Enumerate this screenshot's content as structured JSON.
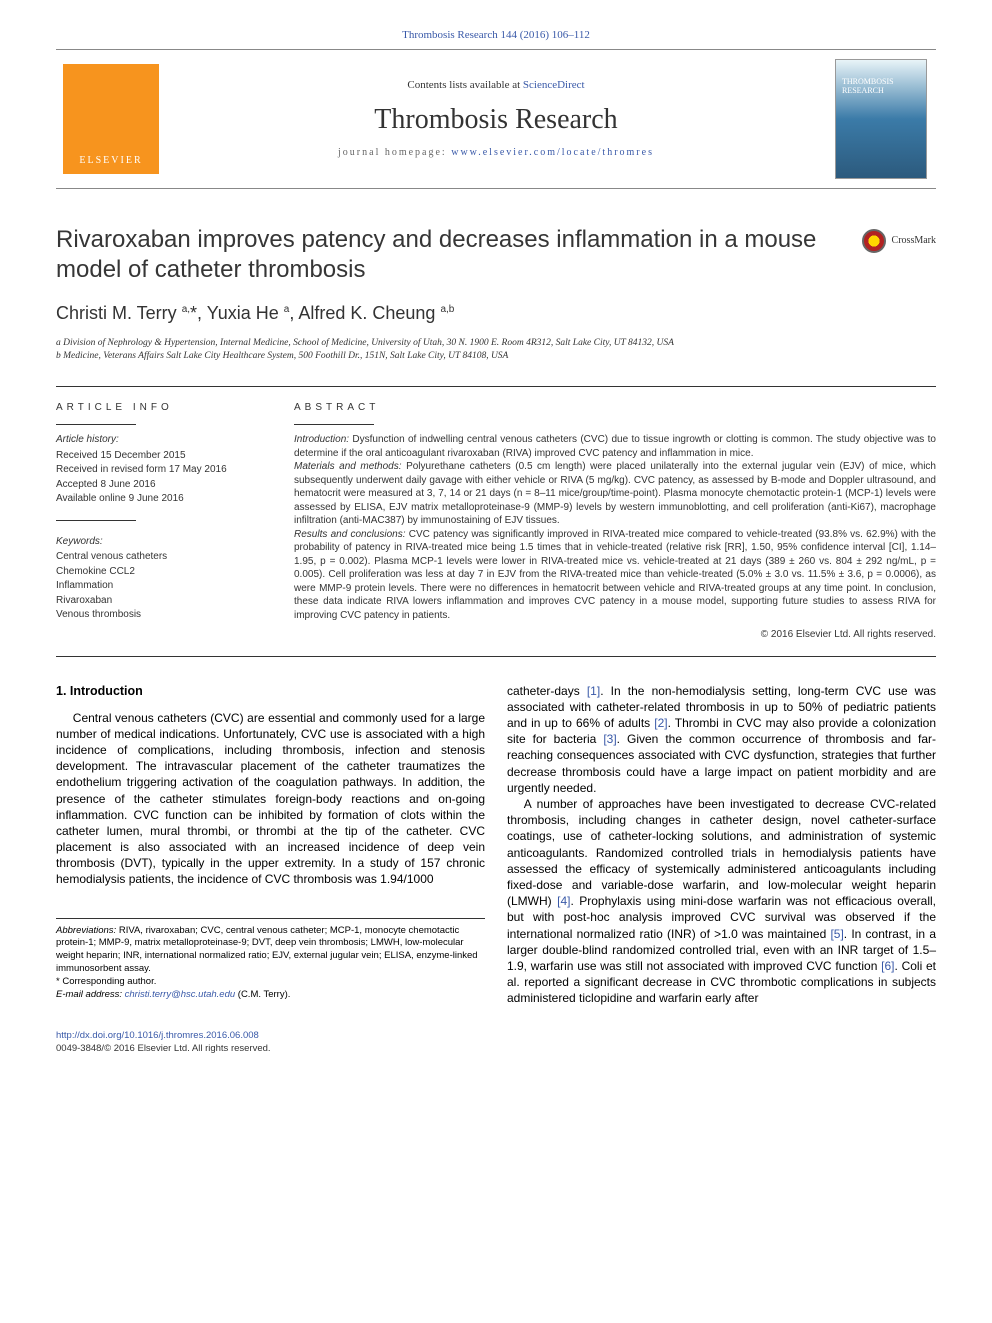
{
  "links": {
    "citation": "Thrombosis Research 144 (2016) 106–112",
    "sciencedirect_prefix": "Contents lists available at ",
    "sciencedirect_label": "ScienceDirect",
    "homepage_prefix": "journal homepage: ",
    "homepage_url": "www.elsevier.com/locate/thromres"
  },
  "masthead": {
    "publisher_logo_text": "ELSEVIER",
    "journal_name": "Thrombosis Research",
    "cover_label_line1": "THROMBOSIS",
    "cover_label_line2": "RESEARCH"
  },
  "crossmark_label": "CrossMark",
  "article": {
    "title": "Rivaroxaban improves patency and decreases inflammation in a mouse model of catheter thrombosis",
    "authors_html": "Christi M. Terry <sup>a,</sup><span class='star'>*</span>, Yuxia He <sup>a</sup>, Alfred K. Cheung <sup>a,b</sup>",
    "affiliations": [
      "a  Division of Nephrology & Hypertension, Internal Medicine, School of Medicine, University of Utah, 30 N. 1900 E. Room 4R312, Salt Lake City, UT 84132, USA",
      "b  Medicine, Veterans Affairs Salt Lake City Healthcare System, 500 Foothill Dr., 151N, Salt Lake City, UT 84108, USA"
    ]
  },
  "article_info": {
    "label": "ARTICLE INFO",
    "history_label": "Article history:",
    "history": [
      "Received 15 December 2015",
      "Received in revised form 17 May 2016",
      "Accepted 8 June 2016",
      "Available online 9 June 2016"
    ],
    "keywords_label": "Keywords:",
    "keywords": [
      "Central venous catheters",
      "Chemokine CCL2",
      "Inflammation",
      "Rivaroxaban",
      "Venous thrombosis"
    ]
  },
  "abstract": {
    "label": "ABSTRACT",
    "introduction_label": "Introduction:",
    "introduction": " Dysfunction of indwelling central venous catheters (CVC) due to tissue ingrowth or clotting is common. The study objective was to determine if the oral anticoagulant rivaroxaban (RIVA) improved CVC patency and inflammation in mice.",
    "methods_label": "Materials and methods:",
    "methods": " Polyurethane catheters (0.5 cm length) were placed unilaterally into the external jugular vein (EJV) of mice, which subsequently underwent daily gavage with either vehicle or RIVA (5 mg/kg). CVC patency, as assessed by B-mode and Doppler ultrasound, and hematocrit were measured at 3, 7, 14 or 21 days (n = 8–11 mice/group/time-point). Plasma monocyte chemotactic protein-1 (MCP-1) levels were assessed by ELISA, EJV matrix metalloproteinase-9 (MMP-9) levels by western immunoblotting, and cell proliferation (anti-Ki67), macrophage infiltration (anti-MAC387) by immunostaining of EJV tissues.",
    "results_label": "Results and conclusions:",
    "results": " CVC patency was significantly improved in RIVA-treated mice compared to vehicle-treated (93.8% vs. 62.9%) with the probability of patency in RIVA-treated mice being 1.5 times that in vehicle-treated (relative risk [RR], 1.50, 95% confidence interval [CI], 1.14–1.95, p = 0.002). Plasma MCP-1 levels were lower in RIVA-treated mice vs. vehicle-treated at 21 days (389 ± 260 vs. 804 ± 292 ng/mL, p = 0.005). Cell proliferation was less at day 7 in EJV from the RIVA-treated mice than vehicle-treated (5.0% ± 3.0 vs. 11.5% ± 3.6, p = 0.0006), as were MMP-9 protein levels. There were no differences in hematocrit between vehicle and RIVA-treated groups at any time point. In conclusion, these data indicate RIVA lowers inflammation and improves CVC patency in a mouse model, supporting future studies to assess RIVA for improving CVC patency in patients.",
    "copyright": "© 2016 Elsevier Ltd. All rights reserved."
  },
  "body": {
    "heading": "1. Introduction",
    "para1": "Central venous catheters (CVC) are essential and commonly used for a large number of medical indications. Unfortunately, CVC use is associated with a high incidence of complications, including thrombosis, infection and stenosis development. The intravascular placement of the catheter traumatizes the endothelium triggering activation of the coagulation pathways. In addition, the presence of the catheter stimulates foreign-body reactions and on-going inflammation. CVC function can be inhibited by formation of clots within the catheter lumen, mural thrombi, or thrombi at the tip of the catheter. CVC placement is also associated with an increased incidence of deep vein thrombosis (DVT), typically in the upper extremity. In a study of 157 chronic hemodialysis patients, the incidence of CVC thrombosis was 1.94/1000 ",
    "para1_cont": "catheter-days ",
    "ref1": "[1]",
    "para1_cont2": ". In the non-hemodialysis setting, long-term CVC use was associated with catheter-related thrombosis in up to 50% of pediatric patients and in up to 66% of adults ",
    "ref2": "[2]",
    "para1_cont3": ". Thrombi in CVC may also provide a colonization site for bacteria ",
    "ref3": "[3]",
    "para1_cont4": ". Given the common occurrence of thrombosis and far-reaching consequences associated with CVC dysfunction, strategies that further decrease thrombosis could have a large impact on patient morbidity and are urgently needed.",
    "para2": "A number of approaches have been investigated to decrease CVC-related thrombosis, including changes in catheter design, novel catheter-surface coatings, use of catheter-locking solutions, and administration of systemic anticoagulants. Randomized controlled trials in hemodialysis patients have assessed the efficacy of systemically administered anticoagulants including fixed-dose and variable-dose warfarin, and low-molecular weight heparin (LMWH) ",
    "ref4": "[4]",
    "para2_cont": ". Prophylaxis using mini-dose warfarin was not efficacious overall, but with post-hoc analysis improved CVC survival was observed if the international normalized ratio (INR) of >1.0 was maintained ",
    "ref5": "[5]",
    "para2_cont2": ". In contrast, in a larger double-blind randomized controlled trial, even with an INR target of 1.5–1.9, warfarin use was still not associated with improved CVC function ",
    "ref6": "[6]",
    "para2_cont3": ". Coli et al. reported a significant decrease in CVC thrombotic complications in subjects administered ticlopidine and warfarin early after"
  },
  "footnotes": {
    "abbrev_label": "Abbreviations:",
    "abbrev_text": " RIVA, rivaroxaban; CVC, central venous catheter; MCP-1, monocyte chemotactic protein-1; MMP-9, matrix metalloproteinase-9; DVT, deep vein thrombosis; LMWH, low-molecular weight heparin; INR, international normalized ratio; EJV, external jugular vein; ELISA, enzyme-linked immunosorbent assay.",
    "corresponding": "* Corresponding author.",
    "email_label": "E-mail address:",
    "email": "christi.terry@hsc.utah.edu",
    "email_suffix": " (C.M. Terry)."
  },
  "footer": {
    "doi": "http://dx.doi.org/10.1016/j.thromres.2016.06.008",
    "issn_line": "0049-3848/© 2016 Elsevier Ltd. All rights reserved."
  },
  "colors": {
    "link": "#3959a8",
    "logo_orange": "#f7941e",
    "text": "#333333"
  }
}
